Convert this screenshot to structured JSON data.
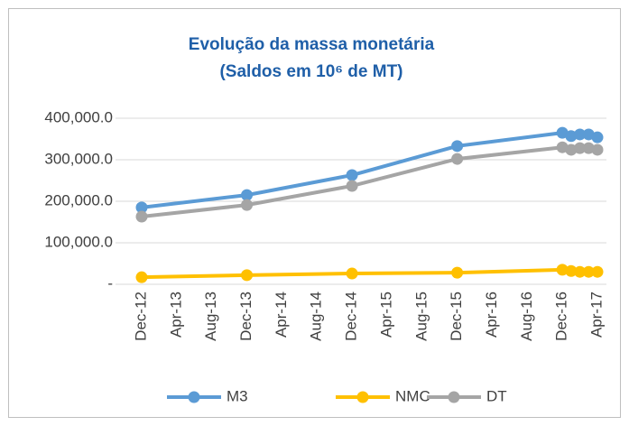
{
  "chart_data": {
    "type": "line",
    "title": "Evolução da massa monetária",
    "subtitle": "(Saldos em 10⁶ de MT)",
    "x": [
      "Dec-12",
      "Dec-13",
      "Dec-14",
      "Dec-15",
      "Dec-16",
      "Jan-17",
      "Feb-17",
      "Mar-17",
      "Apr-17"
    ],
    "xlim": [
      "Dec-12",
      "Apr-17"
    ],
    "xticks": [
      "Dec-12",
      "Apr-13",
      "Aug-13",
      "Dec-13",
      "Apr-14",
      "Aug-14",
      "Dec-14",
      "Apr-15",
      "Aug-15",
      "Dec-15",
      "Apr-16",
      "Aug-16",
      "Dec-16",
      "Apr-17"
    ],
    "series": [
      {
        "name": "M3",
        "color": "#5b9bd5",
        "values": [
          185000,
          215000,
          263000,
          333000,
          365000,
          357000,
          361000,
          361000,
          354000
        ]
      },
      {
        "name": "NMC",
        "color": "#ffc000",
        "values": [
          17000,
          22000,
          26000,
          28000,
          35000,
          32000,
          30000,
          30000,
          30000
        ]
      },
      {
        "name": "DT",
        "color": "#a5a5a5",
        "values": [
          163000,
          191000,
          237000,
          302000,
          330000,
          324000,
          328000,
          328000,
          324000
        ]
      }
    ],
    "ylim": [
      0,
      400000
    ],
    "yticks": [
      {
        "value": 0,
        "label": "-"
      },
      {
        "value": 100000,
        "label": "100,000.0"
      },
      {
        "value": 200000,
        "label": "200,000.0"
      },
      {
        "value": 300000,
        "label": "300,000.0"
      },
      {
        "value": 400000,
        "label": "400,000.0"
      }
    ],
    "grid": true,
    "legend": "bottom"
  }
}
